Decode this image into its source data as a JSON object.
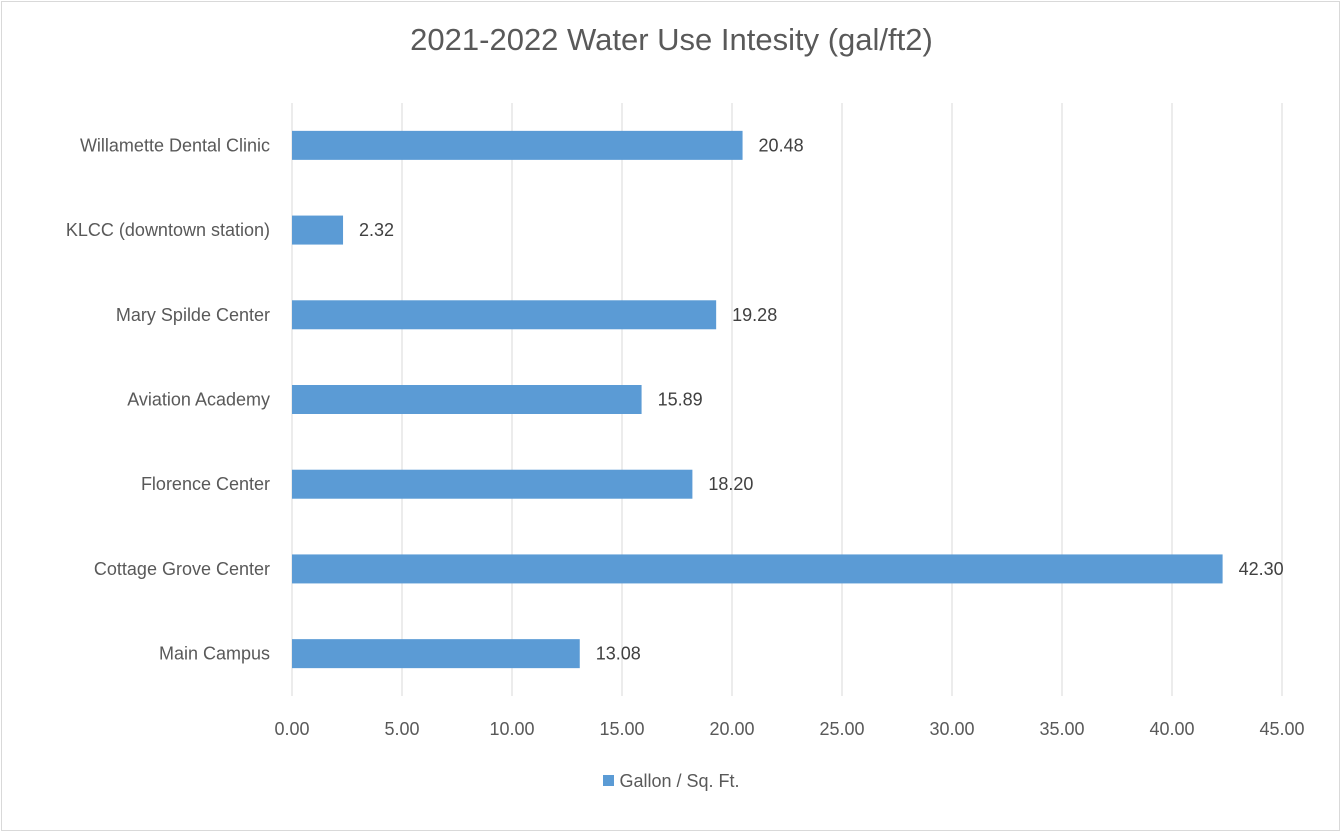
{
  "chart_data": {
    "type": "bar",
    "orientation": "horizontal",
    "title": "2021-2022 Water Use Intesity (gal/ft2)",
    "categories": [
      "Main Campus",
      "Cottage Grove Center",
      "Florence Center",
      "Aviation Academy",
      "Mary Spilde Center",
      "KLCC (downtown station)",
      "Willamette Dental Clinic"
    ],
    "series": [
      {
        "name": "Gallon / Sq. Ft.",
        "values": [
          13.08,
          42.3,
          18.2,
          15.89,
          19.28,
          2.32,
          20.48
        ],
        "data_labels": [
          "13.08",
          "42.30",
          "18.20",
          "15.89",
          "19.28",
          "2.32",
          "20.48"
        ]
      }
    ],
    "x_ticks": [
      "0.00",
      "5.00",
      "10.00",
      "15.00",
      "20.00",
      "25.00",
      "30.00",
      "35.00",
      "40.00",
      "45.00"
    ],
    "xlim": [
      0,
      45
    ],
    "xlabel": "",
    "ylabel": "",
    "grid": "vertical",
    "legend_position": "bottom",
    "colors": {
      "bar": "#5b9bd5",
      "grid": "#d9d9d9",
      "text": "#595959"
    }
  }
}
